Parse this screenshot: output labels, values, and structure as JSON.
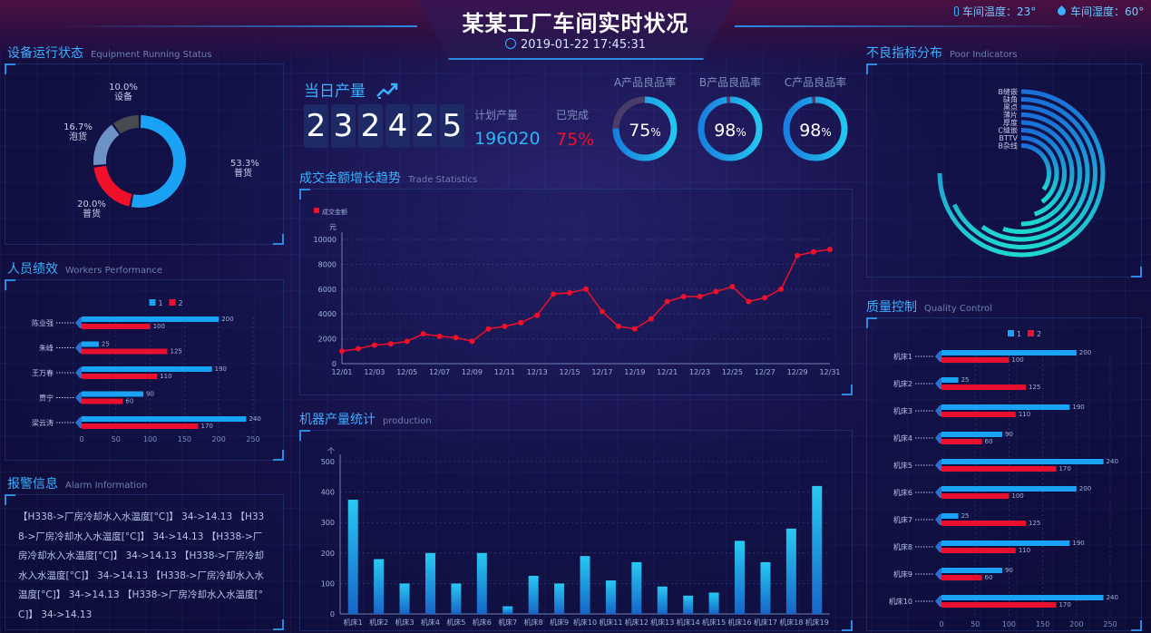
{
  "header": {
    "title": "某某工厂车间实时状况",
    "datetime": "2019-01-22 17:45:31",
    "temp_label": "车间温度：23°",
    "humidity_label": "车间湿度：60°"
  },
  "equipment": {
    "title": "设备运行状态",
    "subtitle": "Equipment Running Status",
    "slices": [
      {
        "name": "普货",
        "pct": "53.3%",
        "value": 53.3,
        "color": "#1aa3f5"
      },
      {
        "name": "普货",
        "pct": "20.0%",
        "value": 20.0,
        "color": "#f0102a"
      },
      {
        "name": "泡货",
        "pct": "16.7%",
        "value": 16.7,
        "color": "#6c92c6"
      },
      {
        "name": "设备",
        "pct": "10.0%",
        "value": 10.0,
        "color": "#474a4e"
      }
    ]
  },
  "workers": {
    "title": "人员绩效",
    "subtitle": "Workers Performance",
    "legend": [
      "1",
      "2"
    ],
    "names": [
      "陈业强",
      "朱峰",
      "王万春",
      "贾宁",
      "梁云涛"
    ],
    "s1": [
      200,
      25,
      190,
      90,
      240
    ],
    "s2": [
      100,
      125,
      110,
      60,
      170
    ],
    "xticks": [
      "0",
      "50",
      "100",
      "150",
      "200",
      "250"
    ],
    "xmax": 250
  },
  "alarm": {
    "title": "报警信息",
    "subtitle": "Alarm Information",
    "text": "【H338->厂房冷却水入水温度[°C]】 34->14.13 【H338->厂房冷却水入水温度[°C]】 34->14.13 【H338->厂房冷却水入水温度[°C]】 34->14.13 【H338->厂房冷却水入水温度[°C]】 34->14.13 【H338->厂房冷却水入水温度[°C]】 34->14.13 【H338->厂房冷却水入水温度[°C]】 34->14.13"
  },
  "production_today": {
    "title": "当日产量",
    "digits": [
      "2",
      "3",
      "2",
      "4",
      "2",
      "5"
    ],
    "plan_label": "计划产量",
    "plan_value": "196020",
    "done_label": "已完成",
    "done_value": "75%",
    "chart-icon": "trend-chart-icon"
  },
  "gauges": [
    {
      "title": "A产品良品率",
      "label": "75",
      "unit": "%",
      "value": 75
    },
    {
      "title": "B产品良品率",
      "label": "98",
      "unit": "%",
      "value": 98
    },
    {
      "title": "C产品良品率",
      "label": "98",
      "unit": "%",
      "value": 98
    }
  ],
  "trade": {
    "title": "成交金额增长趋势",
    "subtitle": "Trade Statistics",
    "legend": "成交金额",
    "yunit": "元",
    "yticks": [
      "0",
      "2000",
      "4000",
      "6000",
      "8000",
      "10000"
    ],
    "ymax": 10000,
    "xticks": [
      "12/01",
      "12/03",
      "12/05",
      "12/07",
      "12/09",
      "12/11",
      "12/13",
      "12/15",
      "12/17",
      "12/19",
      "12/21",
      "12/23",
      "12/25",
      "12/27",
      "12/29",
      "12/31"
    ],
    "values": [
      1000,
      1200,
      1500,
      1600,
      1800,
      2400,
      2200,
      2100,
      1800,
      2800,
      3000,
      3300,
      3900,
      5600,
      5700,
      6000,
      4200,
      3000,
      2800,
      3600,
      5000,
      5400,
      5400,
      5800,
      6200,
      5000,
      5300,
      6000,
      8700,
      9000,
      9200
    ]
  },
  "machines": {
    "title": "机器产量统计",
    "subtitle": "production",
    "yunit": "个",
    "yticks": [
      "0",
      "100",
      "200",
      "300",
      "400",
      "500"
    ],
    "ymax": 500,
    "names": [
      "机床1",
      "机床2",
      "机床3",
      "机床4",
      "机床5",
      "机床6",
      "机床7",
      "机床8",
      "机床9",
      "机床10",
      "机床11",
      "机床12",
      "机床13",
      "机床14",
      "机床15",
      "机床16",
      "机床17",
      "机床18",
      "机床19"
    ],
    "values": [
      375,
      180,
      100,
      200,
      100,
      200,
      25,
      125,
      100,
      190,
      110,
      170,
      90,
      60,
      70,
      240,
      170,
      280,
      420
    ]
  },
  "poor": {
    "title": "不良指标分布",
    "subtitle": "Poor Indicators",
    "names": [
      "B缝嵌",
      "缺角",
      "黑点",
      "薄片",
      "厚度",
      "C缝嵌",
      "BTTV",
      "B杂线"
    ],
    "values": [
      75,
      68,
      60,
      55,
      50,
      45,
      40,
      35
    ]
  },
  "quality": {
    "title": "质量控制",
    "subtitle": "Quality Control",
    "legend": [
      "1",
      "2"
    ],
    "names": [
      "机床1",
      "机床2",
      "机床3",
      "机床4",
      "机床5",
      "机床6",
      "机床7",
      "机床8",
      "机床9",
      "机床10"
    ],
    "s1": [
      200,
      25,
      190,
      90,
      240,
      200,
      25,
      190,
      90,
      240
    ],
    "s2": [
      100,
      125,
      110,
      60,
      170,
      100,
      125,
      110,
      60,
      170
    ],
    "xticks": [
      "0",
      "50",
      "100",
      "150",
      "200",
      "250"
    ],
    "xmax": 250
  },
  "chart_data": [
    {
      "type": "pie",
      "title": "",
      "labels": [
        "普货",
        "普货",
        "泡货",
        "设备"
      ],
      "values": [
        53.3,
        20.0,
        16.7,
        10.0
      ]
    },
    {
      "type": "bar",
      "orientation": "horizontal",
      "categories": [
        "陈业强",
        "朱峰",
        "王万春",
        "贾宁",
        "梁云涛"
      ],
      "series": [
        {
          "name": "1",
          "values": [
            200,
            25,
            190,
            90,
            240
          ]
        },
        {
          "name": "2",
          "values": [
            100,
            125,
            110,
            60,
            170
          ]
        }
      ],
      "xlim": [
        0,
        250
      ]
    },
    {
      "type": "line",
      "series": [
        {
          "name": "成交金额",
          "values": [
            1000,
            1200,
            1500,
            1600,
            1800,
            2400,
            2200,
            2100,
            1800,
            2800,
            3000,
            3300,
            3900,
            5600,
            5700,
            6000,
            4200,
            3000,
            2800,
            3600,
            5000,
            5400,
            5400,
            5800,
            6200,
            5000,
            5300,
            6000,
            8700,
            9000,
            9200
          ]
        }
      ],
      "ylabel": "元",
      "ylim": [
        0,
        10000
      ]
    },
    {
      "type": "bar",
      "categories": [
        "机床1",
        "机床2",
        "机床3",
        "机床4",
        "机床5",
        "机床6",
        "机床7",
        "机床8",
        "机床9",
        "机床10",
        "机床11",
        "机床12",
        "机床13",
        "机床14",
        "机床15",
        "机床16",
        "机床17",
        "机床18",
        "机床19"
      ],
      "values": [
        375,
        180,
        100,
        200,
        100,
        200,
        25,
        125,
        100,
        190,
        110,
        170,
        90,
        60,
        70,
        240,
        170,
        280,
        420
      ],
      "ylabel": "个",
      "ylim": [
        0,
        500
      ]
    },
    {
      "type": "bar",
      "orientation": "horizontal",
      "categories": [
        "机床1",
        "机床2",
        "机床3",
        "机床4",
        "机床5",
        "机床6",
        "机床7",
        "机床8",
        "机床9",
        "机床10"
      ],
      "series": [
        {
          "name": "1",
          "values": [
            200,
            25,
            190,
            90,
            240,
            200,
            25,
            190,
            90,
            240
          ]
        },
        {
          "name": "2",
          "values": [
            100,
            125,
            110,
            60,
            170,
            100,
            125,
            110,
            60,
            170
          ]
        }
      ],
      "xlim": [
        0,
        250
      ]
    }
  ]
}
